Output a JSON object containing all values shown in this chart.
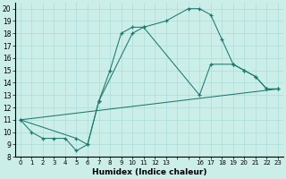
{
  "xlabel": "Humidex (Indice chaleur)",
  "bg_color": "#cceee8",
  "grid_color": "#aaddda",
  "line_color": "#1a7a6e",
  "xlim": [
    -0.5,
    23.5
  ],
  "ylim": [
    8,
    20.5
  ],
  "yticks": [
    8,
    9,
    10,
    11,
    12,
    13,
    14,
    15,
    16,
    17,
    18,
    19,
    20
  ],
  "xticks": [
    0,
    1,
    2,
    3,
    4,
    5,
    6,
    7,
    8,
    9,
    10,
    11,
    12,
    13,
    14,
    15,
    16,
    17,
    18,
    19,
    20,
    21,
    22,
    23
  ],
  "xtick_labels": [
    "0",
    "1",
    "2",
    "3",
    "4",
    "5",
    "6",
    "7",
    "8",
    "9",
    "10",
    "11",
    "12",
    "13",
    "",
    "",
    "16",
    "17",
    "18",
    "19",
    "20",
    "21",
    "22",
    "23"
  ],
  "line1_x": [
    0,
    1,
    2,
    3,
    4,
    5,
    6,
    7,
    8,
    9,
    10,
    11,
    13,
    15,
    16,
    17,
    18,
    19,
    20,
    21,
    22,
    23
  ],
  "line1_y": [
    11,
    10,
    9.5,
    9.5,
    9.5,
    8.5,
    9.0,
    12.5,
    15.0,
    18.0,
    18.5,
    18.5,
    19.0,
    20.0,
    20.0,
    19.5,
    17.5,
    15.5,
    15.0,
    14.5,
    13.5,
    13.5
  ],
  "line2_x": [
    0,
    23
  ],
  "line2_y": [
    11,
    13.5
  ],
  "line3_x": [
    0,
    5,
    6,
    7,
    10,
    11,
    16,
    17,
    19,
    20,
    21,
    22,
    23
  ],
  "line3_y": [
    11,
    9.5,
    9.0,
    12.5,
    18.0,
    18.5,
    13.0,
    15.5,
    15.5,
    15.0,
    14.5,
    13.5,
    13.5
  ]
}
